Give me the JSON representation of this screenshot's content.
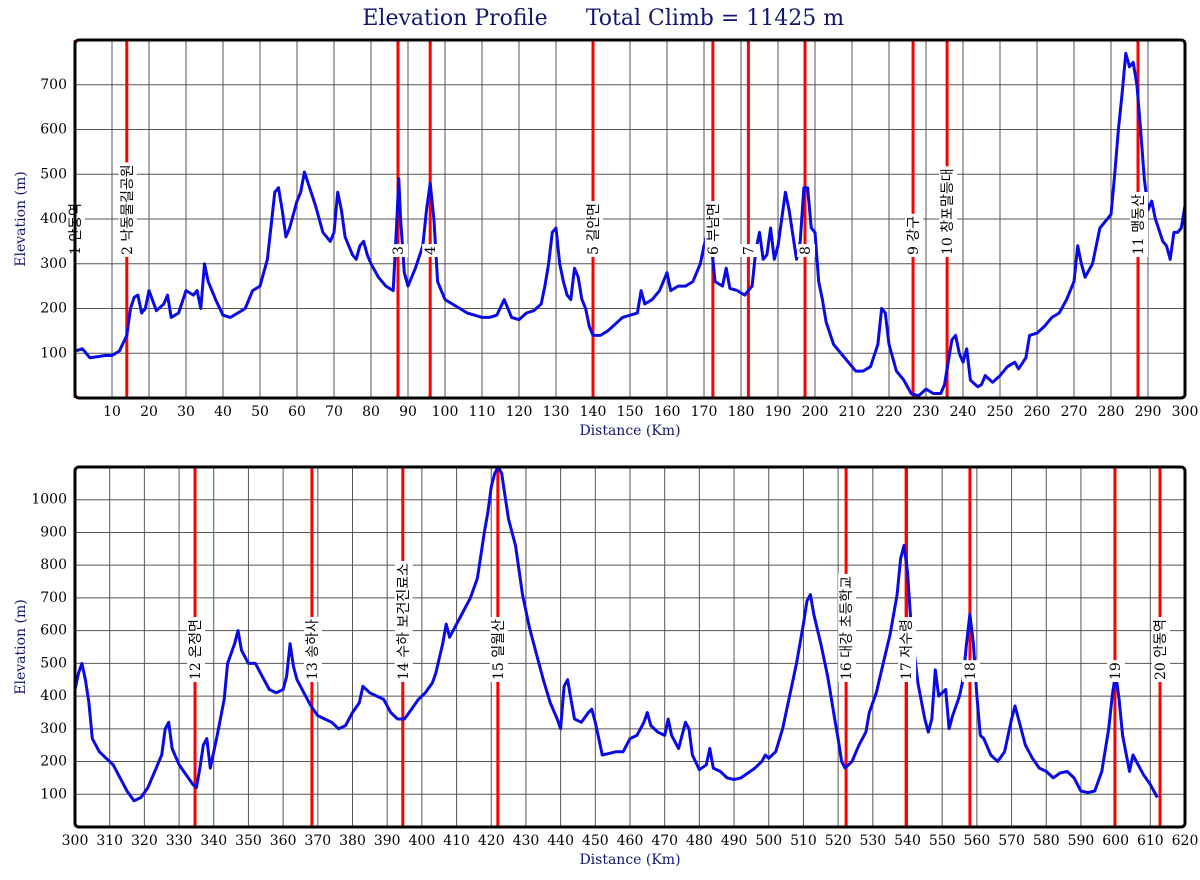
{
  "chart_data": [
    {
      "type": "line",
      "title": "Elevation Profile",
      "subtitle": "Total Climb = 11425 m",
      "xlabel": "Distance (Km)",
      "ylabel": "Elevation (m)",
      "color": "#0a0ae6",
      "marker_color": "#ff0000",
      "grid": true,
      "xlim": [
        0,
        300
      ],
      "ylim": [
        0,
        800
      ],
      "xticks": [
        10,
        20,
        30,
        40,
        50,
        60,
        70,
        80,
        90,
        100,
        110,
        120,
        130,
        140,
        150,
        160,
        170,
        180,
        190,
        200,
        210,
        220,
        230,
        240,
        250,
        260,
        270,
        280,
        290,
        300
      ],
      "yticks": [
        100,
        200,
        300,
        400,
        500,
        600,
        700
      ],
      "x": [
        0,
        2,
        4,
        6,
        8,
        10,
        12,
        14,
        15,
        16,
        17,
        18,
        19,
        20,
        22,
        24,
        25,
        26,
        28,
        30,
        32,
        33,
        34,
        35,
        36,
        38,
        40,
        42,
        44,
        46,
        48,
        50,
        52,
        54,
        55,
        56,
        57,
        58,
        60,
        61,
        62,
        63,
        65,
        67,
        69,
        70,
        71,
        72,
        73,
        75,
        76,
        77,
        78,
        79,
        80,
        82,
        84,
        86,
        87,
        87.5,
        88,
        89,
        90,
        92,
        94,
        95,
        96,
        97,
        98,
        100,
        102,
        104,
        106,
        108,
        110,
        112,
        114,
        116,
        117,
        118,
        120,
        122,
        124,
        126,
        127,
        128,
        129,
        130,
        131,
        132,
        133,
        134,
        135,
        136,
        137,
        138,
        139,
        140,
        142,
        144,
        146,
        148,
        150,
        152,
        153,
        154,
        156,
        158,
        160,
        161,
        163,
        165,
        167,
        169,
        170,
        171,
        172,
        173,
        175,
        176,
        177,
        179,
        181,
        183,
        184,
        185,
        186,
        187,
        188,
        189,
        190,
        191,
        192,
        193,
        195,
        196,
        197,
        198,
        199,
        200,
        201,
        202,
        203,
        205,
        207,
        209,
        211,
        213,
        215,
        217,
        218,
        219,
        220,
        222,
        224,
        226,
        228,
        230,
        232,
        234,
        235,
        236,
        237,
        238,
        239,
        240,
        241,
        242,
        244,
        245,
        246,
        248,
        250,
        252,
        254,
        255,
        257,
        258,
        260,
        262,
        264,
        266,
        268,
        270,
        271,
        272,
        273,
        275,
        277,
        279,
        280,
        281,
        282,
        283,
        284,
        285,
        286,
        287,
        288,
        289,
        290,
        291,
        292,
        294,
        295,
        296,
        297,
        298,
        299,
        300
      ],
      "values": [
        105,
        110,
        90,
        92,
        95,
        95,
        105,
        140,
        200,
        225,
        230,
        190,
        200,
        240,
        195,
        210,
        230,
        180,
        190,
        240,
        230,
        240,
        200,
        300,
        260,
        220,
        185,
        180,
        190,
        200,
        240,
        250,
        310,
        460,
        470,
        420,
        360,
        380,
        440,
        460,
        505,
        480,
        430,
        370,
        350,
        370,
        460,
        420,
        360,
        320,
        310,
        340,
        350,
        320,
        300,
        270,
        250,
        240,
        400,
        490,
        400,
        280,
        250,
        290,
        340,
        420,
        480,
        400,
        260,
        220,
        210,
        200,
        190,
        185,
        180,
        180,
        185,
        220,
        200,
        180,
        175,
        190,
        195,
        210,
        250,
        300,
        370,
        380,
        300,
        260,
        230,
        220,
        290,
        270,
        220,
        200,
        160,
        140,
        140,
        150,
        165,
        180,
        185,
        190,
        240,
        210,
        220,
        240,
        280,
        240,
        250,
        250,
        260,
        300,
        340,
        370,
        340,
        260,
        250,
        290,
        245,
        240,
        230,
        250,
        330,
        370,
        310,
        320,
        380,
        310,
        340,
        400,
        460,
        420,
        310,
        350,
        470,
        470,
        380,
        370,
        260,
        220,
        170,
        120,
        100,
        80,
        60,
        60,
        70,
        120,
        200,
        190,
        120,
        60,
        40,
        10,
        5,
        20,
        10,
        10,
        30,
        80,
        130,
        140,
        100,
        80,
        110,
        40,
        25,
        30,
        50,
        35,
        50,
        70,
        80,
        65,
        90,
        140,
        145,
        160,
        180,
        190,
        220,
        260,
        340,
        300,
        270,
        300,
        380,
        400,
        410,
        500,
        600,
        680,
        770,
        740,
        750,
        700,
        600,
        490,
        420,
        440,
        400,
        350,
        340,
        310,
        370,
        370,
        380,
        430
      ],
      "markers": [
        {
          "x": 0,
          "label": "1 안동역"
        },
        {
          "x": 14,
          "label": "2 낙동물길공원"
        },
        {
          "x": 87.3,
          "label": "3"
        },
        {
          "x": 96,
          "label": "4"
        },
        {
          "x": 140,
          "label": "5 길안면"
        },
        {
          "x": 172.4,
          "label": "6 부남면"
        },
        {
          "x": 182,
          "label": "7"
        },
        {
          "x": 197.3,
          "label": "8"
        },
        {
          "x": 226.5,
          "label": "9 강구"
        },
        {
          "x": 235.7,
          "label": "10 창포말등대"
        },
        {
          "x": 287.3,
          "label": "11 맹동산"
        }
      ]
    },
    {
      "type": "line",
      "xlabel": "Distance (Km)",
      "ylabel": "Elevation (m)",
      "color": "#0a0ae6",
      "marker_color": "#ff0000",
      "grid": true,
      "xlim": [
        300,
        620
      ],
      "ylim": [
        0,
        1100
      ],
      "xticks": [
        300,
        310,
        320,
        330,
        340,
        350,
        360,
        370,
        380,
        390,
        400,
        410,
        420,
        430,
        440,
        450,
        460,
        470,
        480,
        490,
        500,
        510,
        520,
        530,
        540,
        550,
        560,
        570,
        580,
        590,
        600,
        610,
        620
      ],
      "yticks": [
        100,
        200,
        300,
        400,
        500,
        600,
        700,
        800,
        900,
        1000
      ],
      "x": [
        300,
        301,
        302,
        303,
        304,
        305,
        307,
        309,
        311,
        313,
        315,
        317,
        319,
        321,
        323,
        325,
        326,
        327,
        328,
        330,
        332,
        334,
        335,
        336,
        337,
        338,
        339,
        341,
        343,
        344,
        346,
        347,
        348,
        350,
        352,
        354,
        356,
        358,
        360,
        361,
        362,
        363,
        364,
        366,
        368,
        370,
        372,
        374,
        376,
        378,
        380,
        382,
        383,
        385,
        387,
        389,
        391,
        393,
        395,
        397,
        399,
        401,
        403,
        404,
        406,
        407,
        408,
        410,
        412,
        414,
        416,
        418,
        419,
        420,
        421,
        422,
        423,
        424,
        425,
        427,
        429,
        431,
        433,
        435,
        437,
        439,
        440,
        441,
        442,
        443,
        444,
        446,
        448,
        449,
        450,
        452,
        454,
        456,
        458,
        460,
        462,
        464,
        465,
        466,
        468,
        470,
        471,
        472,
        474,
        476,
        477,
        478,
        480,
        482,
        483,
        484,
        486,
        488,
        490,
        492,
        494,
        496,
        498,
        499,
        500,
        502,
        504,
        506,
        508,
        510,
        511,
        512,
        513,
        515,
        517,
        519,
        520,
        521,
        522,
        524,
        526,
        528,
        529,
        531,
        533,
        535,
        537,
        538,
        539,
        540,
        541,
        543,
        545,
        546,
        547,
        548,
        549,
        551,
        552,
        553,
        555,
        556,
        557,
        558,
        559,
        560,
        561,
        562,
        564,
        566,
        568,
        570,
        571,
        572,
        574,
        576,
        578,
        580,
        582,
        584,
        586,
        588,
        590,
        592,
        594,
        596,
        598,
        599,
        600,
        601,
        602,
        604,
        605,
        606,
        608,
        610,
        612
      ],
      "values": [
        420,
        470,
        500,
        450,
        380,
        270,
        230,
        210,
        190,
        150,
        110,
        80,
        90,
        120,
        170,
        220,
        300,
        320,
        240,
        190,
        160,
        130,
        120,
        180,
        250,
        270,
        180,
        280,
        390,
        500,
        560,
        600,
        540,
        500,
        500,
        460,
        420,
        410,
        420,
        460,
        560,
        490,
        450,
        410,
        370,
        340,
        330,
        320,
        300,
        310,
        350,
        380,
        430,
        410,
        400,
        390,
        350,
        330,
        330,
        360,
        390,
        410,
        440,
        470,
        560,
        620,
        580,
        620,
        660,
        700,
        760,
        900,
        960,
        1040,
        1080,
        1100,
        1080,
        1010,
        940,
        860,
        710,
        610,
        530,
        450,
        380,
        330,
        300,
        430,
        450,
        390,
        330,
        320,
        350,
        360,
        320,
        220,
        225,
        230,
        230,
        270,
        280,
        320,
        350,
        310,
        290,
        280,
        330,
        280,
        240,
        320,
        300,
        220,
        175,
        190,
        240,
        180,
        170,
        150,
        145,
        150,
        165,
        180,
        200,
        220,
        210,
        230,
        300,
        400,
        500,
        620,
        690,
        710,
        650,
        560,
        460,
        330,
        270,
        200,
        180,
        200,
        250,
        290,
        350,
        410,
        500,
        590,
        710,
        820,
        860,
        780,
        620,
        440,
        330,
        290,
        330,
        480,
        400,
        420,
        300,
        340,
        400,
        450,
        560,
        650,
        560,
        400,
        280,
        270,
        220,
        200,
        230,
        330,
        370,
        330,
        250,
        210,
        180,
        170,
        150,
        165,
        170,
        150,
        110,
        105,
        110,
        170,
        300,
        400,
        470,
        390,
        280,
        170,
        220,
        200,
        160,
        130,
        90
      ],
      "markers": [
        {
          "x": 334.6,
          "label": "12 온정면"
        },
        {
          "x": 368.3,
          "label": "13 송하사"
        },
        {
          "x": 394.5,
          "label": "14 수하 보건진료소"
        },
        {
          "x": 421.9,
          "label": "15 일월산"
        },
        {
          "x": 522.3,
          "label": "16 대강 초등학교"
        },
        {
          "x": 539.6,
          "label": "17 저수령"
        },
        {
          "x": 558,
          "label": "18"
        },
        {
          "x": 599.8,
          "label": "19"
        },
        {
          "x": 612.8,
          "label": "20 안동역"
        }
      ]
    }
  ]
}
